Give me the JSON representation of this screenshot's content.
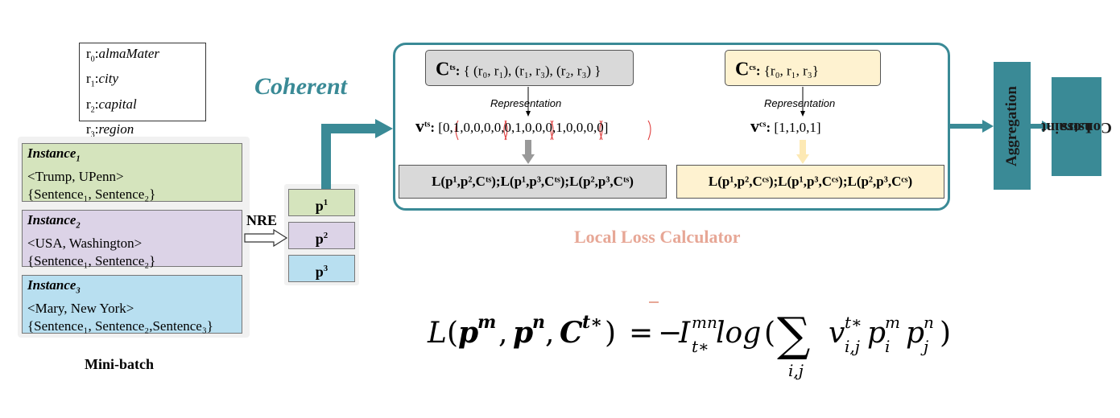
{
  "legend": {
    "items": [
      {
        "r": "r",
        "sub": "0",
        "name": "almaMater"
      },
      {
        "r": "r",
        "sub": "1",
        "name": "city"
      },
      {
        "r": "r",
        "sub": "2",
        "name": "capital"
      },
      {
        "r": "r",
        "sub": "3",
        "name": "region"
      }
    ]
  },
  "coherent_label": "Coherent",
  "instances": [
    {
      "title": "Instance",
      "sub": "1",
      "pair": "<Trump, UPenn>",
      "sentences": "{Sentence₁, Sentence₂}"
    },
    {
      "title": "Instance",
      "sub": "2",
      "pair": "<USA, Washington>",
      "sentences": "{Sentence₁, Sentence₂}"
    },
    {
      "title": "Instance",
      "sub": "3",
      "pair": "<Mary, New York>",
      "sentences": "{Sentence₁, Sentence₂,Sentence₃}"
    }
  ],
  "minibatch_label": "Mini-batch",
  "nre_label": "NRE",
  "p_boxes": [
    {
      "p": "p",
      "sup": "1"
    },
    {
      "p": "p",
      "sup": "2"
    },
    {
      "p": "p",
      "sup": "3"
    }
  ],
  "cts": {
    "symbol": "C",
    "sup": "ts",
    "set": "{ (r₀, r₁), (r₁, r₃), (r₂, r₃) }"
  },
  "ccs": {
    "symbol": "C",
    "sup": "cs",
    "set": "{r₀, r₁, r₃}"
  },
  "representation_label": "Representation",
  "vts": {
    "symbol": "v",
    "sup": "ts",
    "vector": "[0,1,0,0,0,0,0,1,0,0,0,1,0,0,0,0]"
  },
  "vcs": {
    "symbol": "v",
    "sup": "cs",
    "vector": "[1,1,0,1]"
  },
  "loss_ts": "L(p¹,p²,Cᵗˢ);L(p¹,p³,Cᵗˢ);L(p²,p³,Cᵗˢ)",
  "loss_cs": "L(p¹,p²,Cᶜˢ);L(p¹,p³,Cᶜˢ);L(p²,p³,Cᶜˢ)",
  "local_loss_label": "Local Loss Calculator",
  "aggregation_label": "Aggregation",
  "constraint_loss_label": [
    "Constraint",
    "Loss"
  ],
  "colors": {
    "teal": "#3a8a96",
    "gray_box": "#d9d9d9",
    "cream_box": "#fef2d0",
    "green": "#d5e4bd",
    "purple": "#dcd3e7",
    "blue": "#b8dff0",
    "salmon": "#e7a796"
  }
}
